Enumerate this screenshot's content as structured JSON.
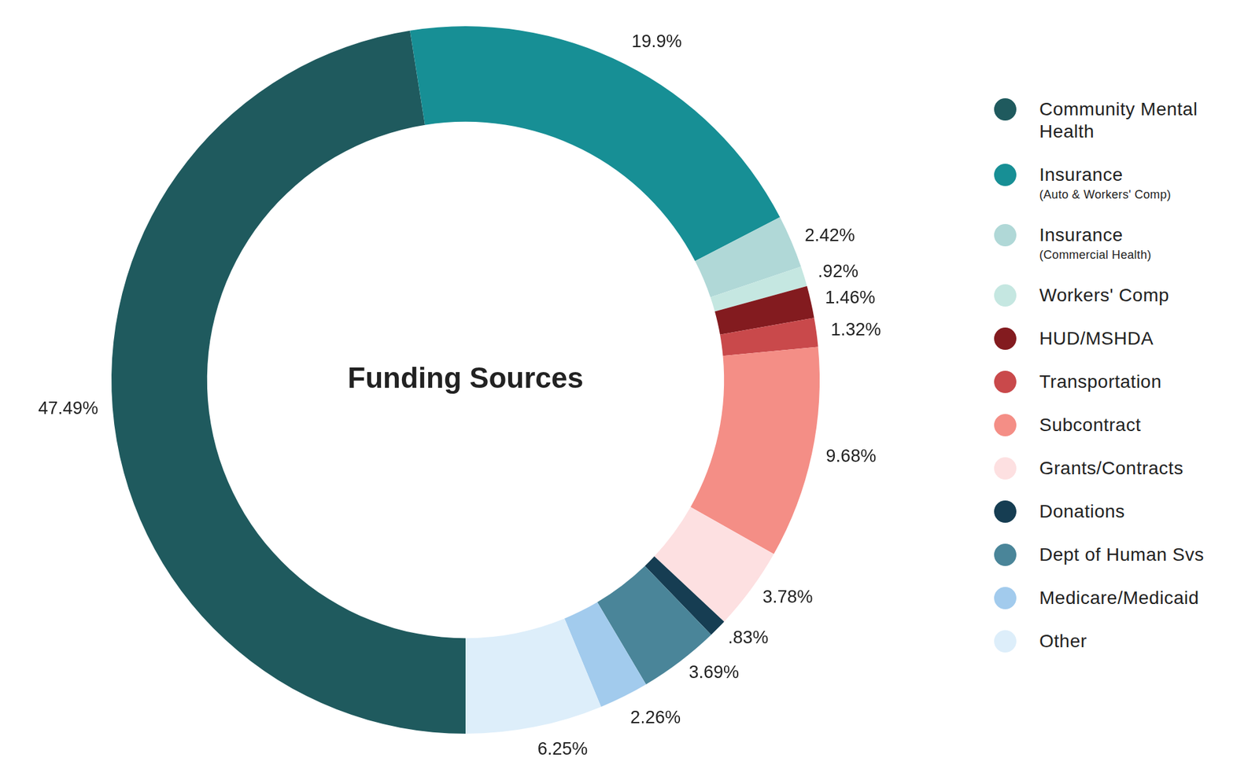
{
  "chart_data": {
    "type": "doughnut",
    "title": "Funding Sources",
    "categories": [
      "Community Mental Health",
      "Insurance (Auto & Workers' Comp)",
      "Insurance (Commercial Health)",
      "Workers' Comp",
      "HUD/MSHDA",
      "Transportation",
      "Subcontract",
      "Grants/Contracts",
      "Donations",
      "Dept of Human Svs",
      "Medicare/Medicaid",
      "Other"
    ],
    "values": [
      47.49,
      19.9,
      2.42,
      0.92,
      1.46,
      1.32,
      9.68,
      3.78,
      0.83,
      3.69,
      2.26,
      6.25
    ],
    "value_labels": [
      "47.49%",
      "19.9%",
      "2.42%",
      ".92%",
      "1.46%",
      "1.32%",
      "9.68%",
      "3.78%",
      ".83%",
      "3.69%",
      "2.26%",
      "6.25%"
    ],
    "colors": [
      "#1f5a5e",
      "#178f95",
      "#b0d8d7",
      "#c5e7e1",
      "#831b1f",
      "#c9494b",
      "#f48e86",
      "#fde0e1",
      "#163d52",
      "#4a8599",
      "#a2cbed",
      "#ddeefa"
    ],
    "data_labels": true,
    "legend": "right"
  }
}
